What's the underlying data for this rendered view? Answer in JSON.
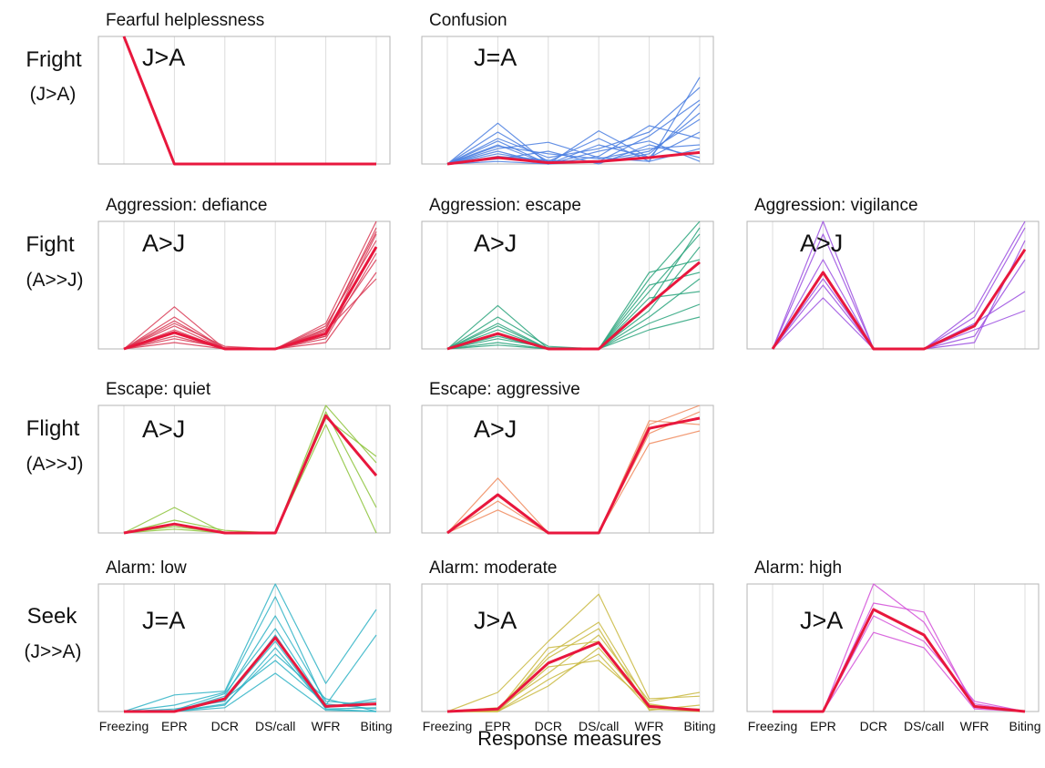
{
  "figure": {
    "xlabel": "Response measures",
    "categories": [
      "Freezing",
      "EPR",
      "DCR",
      "DS/call",
      "WFR",
      "Biting"
    ]
  },
  "rows": [
    {
      "label": "Fright",
      "sub": "(J>A)"
    },
    {
      "label": "Fight",
      "sub": "(A>>J)"
    },
    {
      "label": "Flight",
      "sub": "(A>>J)"
    },
    {
      "label": "Seek",
      "sub": "(J>>A)"
    }
  ],
  "chart_data": [
    {
      "type": "line",
      "row": 0,
      "col": 0,
      "title": "Fearful helplessness",
      "comparison": "J>A",
      "categories": [
        "Freezing",
        "EPR",
        "DCR",
        "DS/call",
        "WFR",
        "Biting"
      ],
      "ylim": [
        0,
        1
      ],
      "colors": {
        "individual": "#e8334f",
        "mean": "#e8173d"
      },
      "mean": [
        1.0,
        0.0,
        0.0,
        0.0,
        0.0,
        0.0
      ],
      "individuals": [
        [
          1.0,
          0.0,
          0.0,
          0.0,
          0.0,
          0.0
        ]
      ]
    },
    {
      "type": "line",
      "row": 0,
      "col": 1,
      "title": "Confusion",
      "comparison": "J=A",
      "categories": [
        "Freezing",
        "EPR",
        "DCR",
        "DS/call",
        "WFR",
        "Biting"
      ],
      "ylim": [
        0,
        1
      ],
      "colors": {
        "individual": "#4a7ee0",
        "mean": "#e8173d"
      },
      "mean": [
        0.0,
        0.05,
        0.01,
        0.02,
        0.05,
        0.09
      ],
      "individuals": [
        [
          0.0,
          0.32,
          0.0,
          0.26,
          0.05,
          0.47
        ],
        [
          0.0,
          0.12,
          0.17,
          0.05,
          0.02,
          0.12
        ],
        [
          0.0,
          0.2,
          0.05,
          0.12,
          0.25,
          0.6
        ],
        [
          0.0,
          0.08,
          0.02,
          0.02,
          0.1,
          0.35
        ],
        [
          0.0,
          0.15,
          0.0,
          0.06,
          0.3,
          0.2
        ],
        [
          0.0,
          0.04,
          0.1,
          0.0,
          0.15,
          0.05
        ],
        [
          0.0,
          0.25,
          0.02,
          0.2,
          0.02,
          0.68
        ],
        [
          0.0,
          0.1,
          0.0,
          0.1,
          0.18,
          0.02
        ],
        [
          0.0,
          0.06,
          0.03,
          0.01,
          0.08,
          0.4
        ],
        [
          0.0,
          0.18,
          0.0,
          0.15,
          0.05,
          0.25
        ],
        [
          0.0,
          0.02,
          0.0,
          0.02,
          0.22,
          0.5
        ],
        [
          0.0,
          0.14,
          0.08,
          0.04,
          0.12,
          0.15
        ]
      ]
    },
    {
      "type": "line",
      "row": 1,
      "col": 0,
      "title": "Aggression: defiance",
      "comparison": "A>J",
      "categories": [
        "Freezing",
        "EPR",
        "DCR",
        "DS/call",
        "WFR",
        "Biting"
      ],
      "ylim": [
        0,
        1
      ],
      "colors": {
        "individual": "#d93a55",
        "mean": "#e8173d"
      },
      "mean": [
        0.0,
        0.13,
        0.0,
        0.0,
        0.12,
        0.8
      ],
      "individuals": [
        [
          0.0,
          0.33,
          0.0,
          0.0,
          0.2,
          1.0
        ],
        [
          0.0,
          0.25,
          0.0,
          0.0,
          0.15,
          0.95
        ],
        [
          0.0,
          0.2,
          0.02,
          0.0,
          0.1,
          0.9
        ],
        [
          0.0,
          0.15,
          0.0,
          0.0,
          0.18,
          0.85
        ],
        [
          0.0,
          0.1,
          0.0,
          0.0,
          0.08,
          0.75
        ],
        [
          0.0,
          0.05,
          0.0,
          0.0,
          0.12,
          0.7
        ],
        [
          0.0,
          0.18,
          0.0,
          0.0,
          0.05,
          0.6
        ],
        [
          0.0,
          0.08,
          0.01,
          0.0,
          0.14,
          0.55
        ],
        [
          0.0,
          0.12,
          0.0,
          0.0,
          0.1,
          0.8
        ],
        [
          0.0,
          0.22,
          0.0,
          0.0,
          0.16,
          0.92
        ]
      ]
    },
    {
      "type": "line",
      "row": 1,
      "col": 1,
      "title": "Aggression: escape",
      "comparison": "A>J",
      "categories": [
        "Freezing",
        "EPR",
        "DCR",
        "DS/call",
        "WFR",
        "Biting"
      ],
      "ylim": [
        0,
        1
      ],
      "colors": {
        "individual": "#2aa57d",
        "mean": "#e8173d"
      },
      "mean": [
        0.0,
        0.12,
        0.0,
        0.0,
        0.35,
        0.68
      ],
      "individuals": [
        [
          0.0,
          0.34,
          0.0,
          0.0,
          0.55,
          1.0
        ],
        [
          0.0,
          0.25,
          0.02,
          0.0,
          0.45,
          0.9
        ],
        [
          0.0,
          0.18,
          0.0,
          0.0,
          0.3,
          0.8
        ],
        [
          0.0,
          0.1,
          0.0,
          0.0,
          0.6,
          0.7
        ],
        [
          0.0,
          0.05,
          0.0,
          0.0,
          0.25,
          0.55
        ],
        [
          0.0,
          0.15,
          0.0,
          0.0,
          0.4,
          0.45
        ],
        [
          0.0,
          0.08,
          0.01,
          0.0,
          0.2,
          0.35
        ],
        [
          0.0,
          0.2,
          0.0,
          0.0,
          0.5,
          0.6
        ],
        [
          0.0,
          0.12,
          0.0,
          0.0,
          0.35,
          0.95
        ],
        [
          0.0,
          0.03,
          0.0,
          0.0,
          0.15,
          0.25
        ]
      ]
    },
    {
      "type": "line",
      "row": 1,
      "col": 2,
      "title": "Aggression: vigilance",
      "comparison": "A>J",
      "categories": [
        "Freezing",
        "EPR",
        "DCR",
        "DS/call",
        "WFR",
        "Biting"
      ],
      "ylim": [
        0,
        1
      ],
      "colors": {
        "individual": "#9b4ee0",
        "mean": "#e8173d"
      },
      "mean": [
        0.0,
        0.6,
        0.0,
        0.0,
        0.18,
        0.78
      ],
      "individuals": [
        [
          0.0,
          1.0,
          0.0,
          0.0,
          0.3,
          1.0
        ],
        [
          0.0,
          0.9,
          0.0,
          0.0,
          0.25,
          0.95
        ],
        [
          0.0,
          0.7,
          0.0,
          0.0,
          0.15,
          0.3
        ],
        [
          0.0,
          0.5,
          0.0,
          0.0,
          0.1,
          0.7
        ],
        [
          0.0,
          0.4,
          0.0,
          0.0,
          0.2,
          0.45
        ],
        [
          0.0,
          0.55,
          0.0,
          0.0,
          0.05,
          0.85
        ]
      ]
    },
    {
      "type": "line",
      "row": 2,
      "col": 0,
      "title": "Escape: quiet",
      "comparison": "A>J",
      "categories": [
        "Freezing",
        "EPR",
        "DCR",
        "DS/call",
        "WFR",
        "Biting"
      ],
      "ylim": [
        0,
        1
      ],
      "colors": {
        "individual": "#8cc33a",
        "mean": "#e8173d"
      },
      "mean": [
        0.0,
        0.07,
        0.0,
        0.0,
        0.92,
        0.45
      ],
      "individuals": [
        [
          0.0,
          0.2,
          0.0,
          0.0,
          1.0,
          0.55
        ],
        [
          0.0,
          0.05,
          0.0,
          0.0,
          0.95,
          0.2
        ],
        [
          0.0,
          0.1,
          0.02,
          0.0,
          0.85,
          0.0
        ],
        [
          0.0,
          0.03,
          0.0,
          0.0,
          0.9,
          0.6
        ]
      ]
    },
    {
      "type": "line",
      "row": 2,
      "col": 1,
      "title": "Escape: aggressive",
      "comparison": "A>J",
      "categories": [
        "Freezing",
        "EPR",
        "DCR",
        "DS/call",
        "WFR",
        "Biting"
      ],
      "ylim": [
        0,
        1
      ],
      "colors": {
        "individual": "#f08a5d",
        "mean": "#e8173d"
      },
      "mean": [
        0.0,
        0.3,
        0.0,
        0.0,
        0.82,
        0.9
      ],
      "individuals": [
        [
          0.0,
          0.43,
          0.0,
          0.0,
          0.85,
          1.0
        ],
        [
          0.0,
          0.18,
          0.0,
          0.0,
          0.7,
          0.8
        ],
        [
          0.0,
          0.3,
          0.0,
          0.0,
          0.78,
          0.95
        ],
        [
          0.0,
          0.25,
          0.0,
          0.0,
          0.88,
          0.85
        ]
      ]
    },
    {
      "type": "line",
      "row": 3,
      "col": 0,
      "title": "Alarm: low",
      "comparison": "J=A",
      "categories": [
        "Freezing",
        "EPR",
        "DCR",
        "DS/call",
        "WFR",
        "Biting"
      ],
      "ylim": [
        0,
        1
      ],
      "colors": {
        "individual": "#2fb3c5",
        "mean": "#e8173d"
      },
      "mean": [
        0.0,
        0.0,
        0.1,
        0.58,
        0.04,
        0.06
      ],
      "individuals": [
        [
          0.0,
          0.13,
          0.16,
          1.0,
          0.22,
          0.8
        ],
        [
          0.0,
          0.05,
          0.15,
          0.9,
          0.05,
          0.6
        ],
        [
          0.0,
          0.0,
          0.12,
          0.75,
          0.08,
          0.05
        ],
        [
          0.0,
          0.02,
          0.08,
          0.6,
          0.02,
          0.0
        ],
        [
          0.0,
          0.0,
          0.05,
          0.5,
          0.03,
          0.1
        ],
        [
          0.0,
          0.0,
          0.1,
          0.4,
          0.06,
          0.02
        ],
        [
          0.0,
          0.0,
          0.03,
          0.3,
          0.01,
          0.0
        ],
        [
          0.0,
          0.01,
          0.14,
          0.65,
          0.04,
          0.08
        ],
        [
          0.0,
          0.0,
          0.06,
          0.45,
          0.1,
          0.0
        ],
        [
          0.0,
          0.0,
          0.09,
          0.55,
          0.02,
          0.03
        ]
      ]
    },
    {
      "type": "line",
      "row": 3,
      "col": 1,
      "title": "Alarm: moderate",
      "comparison": "J>A",
      "categories": [
        "Freezing",
        "EPR",
        "DCR",
        "DS/call",
        "WFR",
        "Biting"
      ],
      "ylim": [
        0,
        1
      ],
      "colors": {
        "individual": "#c9b840",
        "mean": "#e8173d"
      },
      "mean": [
        0.0,
        0.02,
        0.38,
        0.54,
        0.04,
        0.01
      ],
      "individuals": [
        [
          0.0,
          0.15,
          0.55,
          0.92,
          0.1,
          0.12
        ],
        [
          0.0,
          0.0,
          0.45,
          0.7,
          0.05,
          0.0
        ],
        [
          0.0,
          0.03,
          0.3,
          0.6,
          0.08,
          0.15
        ],
        [
          0.0,
          0.0,
          0.25,
          0.45,
          0.02,
          0.0
        ],
        [
          0.0,
          0.01,
          0.5,
          0.55,
          0.03,
          0.02
        ],
        [
          0.0,
          0.0,
          0.35,
          0.4,
          0.06,
          0.0
        ],
        [
          0.0,
          0.02,
          0.42,
          0.65,
          0.01,
          0.05
        ],
        [
          0.0,
          0.0,
          0.2,
          0.5,
          0.04,
          0.0
        ]
      ]
    },
    {
      "type": "line",
      "row": 3,
      "col": 2,
      "title": "Alarm: high",
      "comparison": "J>A",
      "categories": [
        "Freezing",
        "EPR",
        "DCR",
        "DS/call",
        "WFR",
        "Biting"
      ],
      "ylim": [
        0,
        1
      ],
      "colors": {
        "individual": "#d24fd8",
        "mean": "#e8173d"
      },
      "mean": [
        0.0,
        0.0,
        0.8,
        0.6,
        0.04,
        0.0
      ],
      "individuals": [
        [
          0.0,
          0.0,
          1.0,
          0.7,
          0.06,
          0.0
        ],
        [
          0.0,
          0.0,
          0.85,
          0.78,
          0.03,
          0.0
        ],
        [
          0.0,
          0.0,
          0.75,
          0.55,
          0.08,
          0.0
        ],
        [
          0.0,
          0.0,
          0.62,
          0.5,
          0.02,
          0.0
        ]
      ]
    }
  ]
}
